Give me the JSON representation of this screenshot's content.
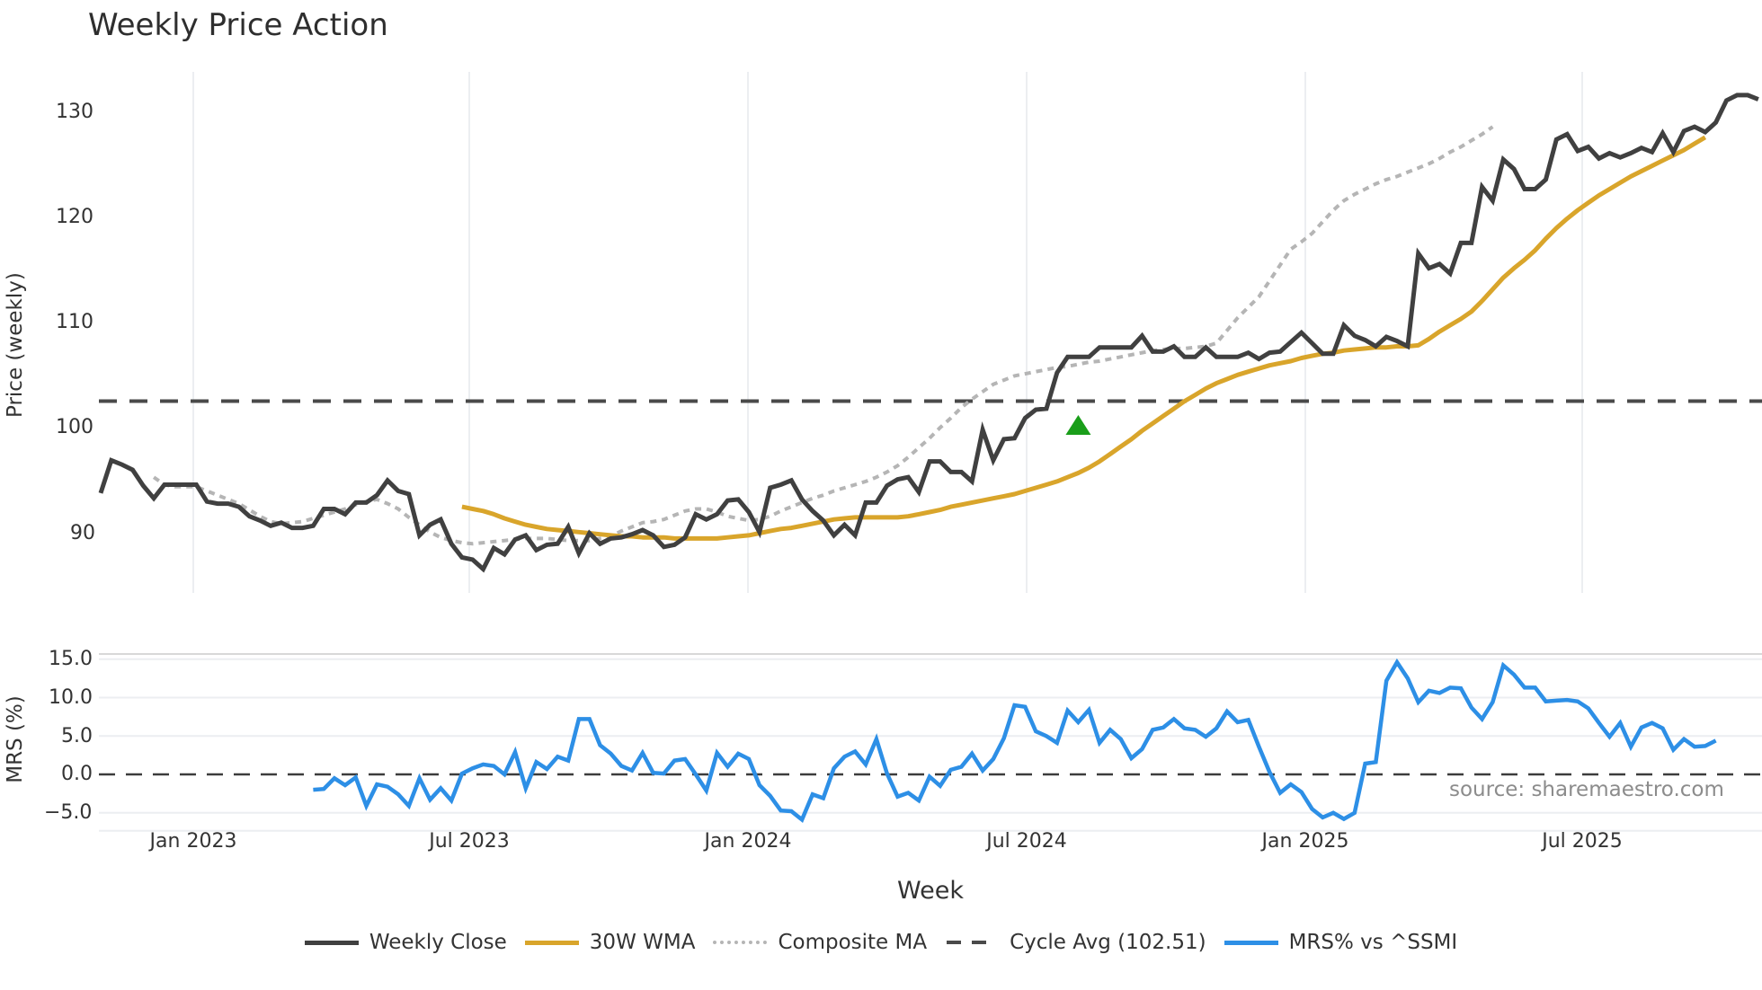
{
  "title": "Weekly Price Action",
  "watermark": "source: sharemaestro.com",
  "colors": {
    "weekly_close": "#404040",
    "wma": "#d9a52b",
    "composite": "#b5b5b5",
    "cycle_avg": "#4a4a4a",
    "mrs": "#2d8fe6",
    "signal": "#1a9e1a",
    "grid": "#eceef1"
  },
  "legend": [
    {
      "key": "weekly_close",
      "label": "Weekly Close",
      "style": "solid"
    },
    {
      "key": "wma",
      "label": "30W WMA",
      "style": "solid"
    },
    {
      "key": "composite",
      "label": "Composite MA",
      "style": "dotted"
    },
    {
      "key": "cycle_avg",
      "label": "Cycle Avg (102.51)",
      "style": "dashed"
    },
    {
      "key": "mrs",
      "label": "MRS% vs ^SSMI",
      "style": "solid"
    }
  ],
  "chart_data": [
    {
      "type": "line",
      "title": "Weekly Price Action",
      "xlabel": "Week",
      "ylabel": "Price (weekly)",
      "x_ticks": [
        "Jan 2023",
        "Jul 2023",
        "Jan 2024",
        "Jul 2024",
        "Jan 2025",
        "Jul 2025"
      ],
      "y_ticks": [
        90,
        100,
        110,
        120,
        130
      ],
      "ylim": [
        84.5,
        134
      ],
      "grid": true,
      "start_week": "Nov 2022",
      "series": [
        {
          "name": "Weekly Close",
          "values": [
            93.8,
            96.9,
            96.5,
            96.0,
            94.5,
            93.3,
            94.6,
            94.6,
            94.6,
            94.6,
            93.0,
            92.8,
            92.8,
            92.5,
            91.6,
            91.2,
            90.7,
            91.0,
            90.5,
            90.5,
            90.7,
            92.3,
            92.3,
            91.8,
            92.9,
            92.9,
            93.6,
            95.0,
            94.0,
            93.7,
            89.8,
            90.8,
            91.3,
            89.0,
            87.7,
            87.5,
            86.6,
            88.6,
            88.0,
            89.4,
            89.8,
            88.4,
            88.9,
            89.0,
            90.6,
            88.1,
            90.0,
            89.0,
            89.5,
            89.6,
            89.9,
            90.3,
            89.8,
            88.7,
            88.9,
            89.6,
            91.8,
            91.3,
            91.8,
            93.1,
            93.2,
            92.0,
            90.1,
            94.3,
            94.6,
            95.0,
            93.2,
            92.1,
            91.2,
            89.8,
            90.8,
            89.8,
            92.9,
            92.9,
            94.5,
            95.1,
            95.3,
            93.9,
            96.8,
            96.8,
            95.8,
            95.8,
            94.9,
            99.8,
            96.9,
            98.9,
            99.0,
            100.9,
            101.7,
            101.8,
            105.2,
            106.7,
            106.7,
            106.7,
            107.6,
            107.6,
            107.6,
            107.6,
            108.7,
            107.2,
            107.2,
            107.7,
            106.7,
            106.7,
            107.6,
            106.7,
            106.7,
            106.7,
            107.1,
            106.5,
            107.1,
            107.2,
            108.1,
            109.0,
            108.0,
            107.0,
            107.0,
            109.7,
            108.7,
            108.3,
            107.7,
            108.6,
            108.2,
            107.7,
            116.5,
            115.1,
            115.5,
            114.6,
            117.5,
            117.5,
            122.8,
            121.5,
            125.4,
            124.5,
            122.6,
            122.6,
            123.5,
            127.3,
            127.8,
            126.2,
            126.6,
            125.5,
            126.0,
            125.6,
            126.0,
            126.5,
            126.1,
            127.9,
            126.1,
            128.1,
            128.5,
            128.0,
            128.9,
            131.0,
            131.5,
            131.5,
            131.1
          ]
        },
        {
          "name": "30W WMA",
          "start_index": 34,
          "values": [
            92.5,
            92.3,
            92.1,
            91.8,
            91.4,
            91.1,
            90.8,
            90.6,
            90.4,
            90.3,
            90.2,
            90.1,
            90.0,
            89.9,
            89.8,
            89.7,
            89.7,
            89.6,
            89.6,
            89.6,
            89.5,
            89.5,
            89.5,
            89.5,
            89.5,
            89.6,
            89.7,
            89.8,
            90.0,
            90.2,
            90.4,
            90.5,
            90.7,
            90.9,
            91.1,
            91.3,
            91.4,
            91.5,
            91.5,
            91.5,
            91.5,
            91.5,
            91.6,
            91.8,
            92.0,
            92.2,
            92.5,
            92.7,
            92.9,
            93.1,
            93.3,
            93.5,
            93.7,
            94.0,
            94.3,
            94.6,
            94.9,
            95.3,
            95.7,
            96.2,
            96.8,
            97.5,
            98.2,
            98.9,
            99.7,
            100.4,
            101.1,
            101.8,
            102.5,
            103.1,
            103.7,
            104.2,
            104.6,
            105.0,
            105.3,
            105.6,
            105.9,
            106.1,
            106.3,
            106.6,
            106.8,
            107.0,
            107.1,
            107.3,
            107.4,
            107.5,
            107.6,
            107.6,
            107.7,
            107.7,
            107.8,
            108.4,
            109.1,
            109.7,
            110.3,
            111.0,
            112.0,
            113.1,
            114.2,
            115.1,
            115.9,
            116.8,
            117.9,
            118.9,
            119.8,
            120.6,
            121.3,
            122.0,
            122.6,
            123.2,
            123.8,
            124.3,
            124.8,
            125.3,
            125.8,
            126.3,
            126.9,
            127.5
          ]
        },
        {
          "name": "Composite MA",
          "start_index": 5,
          "values": [
            95.3,
            94.6,
            94.4,
            94.4,
            94.4,
            94.0,
            93.6,
            93.2,
            92.8,
            92.2,
            91.6,
            91.1,
            90.9,
            91.0,
            91.1,
            91.4,
            91.7,
            92.0,
            92.3,
            92.7,
            93.0,
            93.2,
            92.8,
            92.3,
            91.5,
            90.8,
            90.1,
            89.6,
            89.3,
            89.1,
            89.0,
            89.1,
            89.2,
            89.3,
            89.4,
            89.5,
            89.5,
            89.5,
            89.4,
            89.3,
            89.3,
            89.3,
            89.5,
            89.7,
            90.2,
            90.6,
            91.0,
            91.1,
            91.3,
            91.7,
            92.1,
            92.3,
            92.3,
            92.0,
            91.6,
            91.4,
            91.2,
            91.3,
            91.6,
            92.1,
            92.5,
            92.9,
            93.3,
            93.6,
            94.0,
            94.3,
            94.6,
            94.9,
            95.3,
            95.8,
            96.4,
            97.2,
            98.1,
            99.0,
            100.0,
            100.9,
            101.9,
            102.7,
            103.4,
            104.1,
            104.5,
            104.9,
            105.1,
            105.3,
            105.5,
            105.7,
            105.8,
            106.0,
            106.2,
            106.3,
            106.5,
            106.7,
            106.9,
            107.1,
            107.3,
            107.4,
            107.5,
            107.5,
            107.6,
            107.7,
            108.0,
            109.2,
            110.4,
            111.4,
            112.4,
            113.9,
            115.4,
            116.9,
            117.6,
            118.4,
            119.5,
            120.6,
            121.5,
            122.1,
            122.6,
            123.1,
            123.5,
            123.8,
            124.2,
            124.6,
            125.0,
            125.5,
            126.1,
            126.6,
            127.2,
            127.8,
            128.5
          ]
        },
        {
          "name": "Cycle Avg (102.51)",
          "type": "hline",
          "value": 102.51
        }
      ],
      "annotations": [
        {
          "type": "marker",
          "shape": "triangle-up",
          "color": "#1a9e1a",
          "week_index": 92,
          "value": 100.0
        }
      ]
    },
    {
      "type": "line",
      "xlabel": "Week",
      "ylabel": "MRS (%)",
      "y_ticks": [
        -5.0,
        0.0,
        5.0,
        10.0,
        15.0
      ],
      "y_tick_labels": [
        "−5.0",
        "0.0",
        "5.0",
        "10.0",
        "15.0"
      ],
      "ylim": [
        -6.5,
        16
      ],
      "zero_line": true,
      "series": [
        {
          "name": "MRS% vs ^SSMI",
          "start_index": 20,
          "values": [
            -2.0,
            -1.9,
            -0.5,
            -1.4,
            -0.4,
            -4.1,
            -1.3,
            -1.6,
            -2.6,
            -4.1,
            -0.5,
            -3.3,
            -1.8,
            -3.4,
            0.1,
            0.8,
            1.3,
            1.1,
            0.0,
            2.9,
            -1.8,
            1.6,
            0.7,
            2.3,
            1.8,
            7.2,
            7.2,
            3.8,
            2.7,
            1.1,
            0.5,
            2.8,
            0.2,
            0.1,
            1.8,
            2.0,
            0.0,
            -2.1,
            2.8,
            1.0,
            2.7,
            2.0,
            -1.4,
            -2.8,
            -4.7,
            -4.8,
            -5.9,
            -2.6,
            -3.1,
            0.8,
            2.3,
            3.0,
            1.3,
            4.6,
            0.1,
            -2.9,
            -2.4,
            -3.4,
            -0.3,
            -1.5,
            0.6,
            1.0,
            2.7,
            0.5,
            2.0,
            4.7,
            9.0,
            8.8,
            5.6,
            5.0,
            4.1,
            8.3,
            6.8,
            8.4,
            4.1,
            5.8,
            4.6,
            2.1,
            3.3,
            5.8,
            6.1,
            7.2,
            6.0,
            5.8,
            4.9,
            6.0,
            8.2,
            6.8,
            7.1,
            3.6,
            0.3,
            -2.4,
            -1.3,
            -2.3,
            -4.5,
            -5.6,
            -5.0,
            -5.8,
            -5.0,
            1.4,
            1.6,
            12.2,
            14.6,
            12.5,
            9.4,
            10.9,
            10.6,
            11.3,
            11.2,
            8.7,
            7.2,
            9.4,
            14.2,
            13.0,
            11.3,
            11.3,
            9.5,
            9.6,
            9.7,
            9.5,
            8.6,
            6.7,
            4.9,
            6.7,
            3.6,
            6.1,
            6.7,
            6.0,
            3.2,
            4.6,
            3.6,
            3.7,
            4.4
          ]
        }
      ],
      "x_ticks": [
        "Jan 2023",
        "Jul 2023",
        "Jan 2024",
        "Jul 2024",
        "Jan 2025",
        "Jul 2025"
      ]
    }
  ],
  "axes": {
    "price": {
      "ylabel": "Price (weekly)",
      "ticks": [
        "90",
        "100",
        "110",
        "120",
        "130"
      ]
    },
    "mrs": {
      "ylabel": "MRS (%)",
      "ticks": [
        "15.0",
        "10.0",
        "5.0",
        "0.0",
        "−5.0"
      ]
    },
    "x": {
      "label": "Week",
      "ticks": [
        "Jan 2023",
        "Jul 2023",
        "Jan 2024",
        "Jul 2024",
        "Jan 2025",
        "Jul 2025"
      ]
    }
  }
}
